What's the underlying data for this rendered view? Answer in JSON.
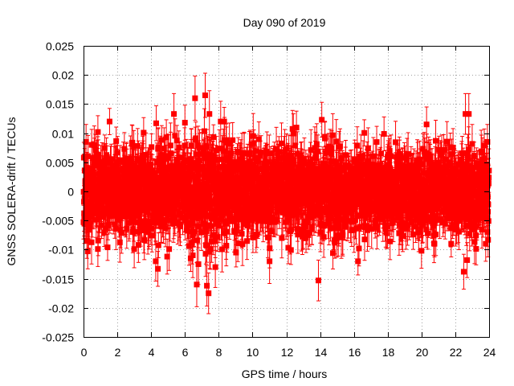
{
  "chart_data": {
    "type": "scatter",
    "title": "Day 090 of 2019",
    "xlabel": "GPS time / hours",
    "ylabel": "GNSS SOLERA-drift / TECUs",
    "xlim": [
      0,
      24
    ],
    "ylim": [
      -0.025,
      0.025
    ],
    "xticks": [
      0,
      2,
      4,
      6,
      8,
      10,
      12,
      14,
      16,
      18,
      20,
      22,
      24
    ],
    "xtick_labels": [
      "0",
      "2",
      "4",
      "6",
      "8",
      "10",
      "12",
      "14",
      "16",
      "18",
      "20",
      "22",
      "24"
    ],
    "yticks": [
      -0.025,
      -0.02,
      -0.015,
      -0.01,
      -0.005,
      0,
      0.005,
      0.01,
      0.015,
      0.02,
      0.025
    ],
    "ytick_labels": [
      "-0.025",
      "-0.02",
      "-0.015",
      "-0.01",
      "-0.005",
      "0",
      "0.005",
      "0.01",
      "0.015",
      "0.02",
      "0.025"
    ],
    "grid": true,
    "series": [
      {
        "name": "SOLERA-drift",
        "color": "#ff0000",
        "marker": "square",
        "error_bars": true,
        "point_count": 2880,
        "sampling_interval_hours": 0.008333,
        "mean": 0.0,
        "std": 0.0035,
        "typical_error": 0.003,
        "notable_points": [
          {
            "x": 0.15,
            "y": 0.0085,
            "err": 0.003
          },
          {
            "x": 0.2,
            "y": -0.0085,
            "err": 0.003
          },
          {
            "x": 0.25,
            "y": -0.0103,
            "err": 0.003
          },
          {
            "x": 0.85,
            "y": 0.0102,
            "err": 0.0028
          },
          {
            "x": 0.85,
            "y": -0.0099,
            "err": 0.003
          },
          {
            "x": 3.2,
            "y": 0.0078,
            "err": 0.003
          },
          {
            "x": 3.25,
            "y": -0.0092,
            "err": 0.003
          },
          {
            "x": 4.3,
            "y": 0.0117,
            "err": 0.003
          },
          {
            "x": 4.4,
            "y": -0.0133,
            "err": 0.003
          },
          {
            "x": 4.9,
            "y": 0.0093,
            "err": 0.003
          },
          {
            "x": 4.95,
            "y": -0.0112,
            "err": 0.003
          },
          {
            "x": 5.35,
            "y": 0.0133,
            "err": 0.0035
          },
          {
            "x": 6.0,
            "y": 0.0118,
            "err": 0.003
          },
          {
            "x": 6.6,
            "y": 0.016,
            "err": 0.0038
          },
          {
            "x": 6.7,
            "y": -0.016,
            "err": 0.0038
          },
          {
            "x": 6.8,
            "y": -0.0125,
            "err": 0.0035
          },
          {
            "x": 7.2,
            "y": 0.0165,
            "err": 0.0038
          },
          {
            "x": 7.3,
            "y": -0.0162,
            "err": 0.0035
          },
          {
            "x": 7.4,
            "y": -0.0175,
            "err": 0.0035
          },
          {
            "x": 7.45,
            "y": 0.0133,
            "err": 0.004
          },
          {
            "x": 7.8,
            "y": -0.013,
            "err": 0.0035
          },
          {
            "x": 13.9,
            "y": -0.0153,
            "err": 0.0035
          },
          {
            "x": 14.1,
            "y": 0.0123,
            "err": 0.003
          },
          {
            "x": 16.3,
            "y": -0.0098,
            "err": 0.003
          },
          {
            "x": 20.0,
            "y": -0.0102,
            "err": 0.003
          },
          {
            "x": 20.3,
            "y": 0.0115,
            "err": 0.003
          },
          {
            "x": 22.5,
            "y": -0.0138,
            "err": 0.003
          },
          {
            "x": 22.6,
            "y": 0.0133,
            "err": 0.0035
          },
          {
            "x": 22.8,
            "y": 0.0133,
            "err": 0.0035
          },
          {
            "x": 22.7,
            "y": -0.0118,
            "err": 0.003
          },
          {
            "x": 23.8,
            "y": -0.009,
            "err": 0.003
          },
          {
            "x": 23.9,
            "y": 0.0085,
            "err": 0.003
          }
        ]
      }
    ]
  }
}
